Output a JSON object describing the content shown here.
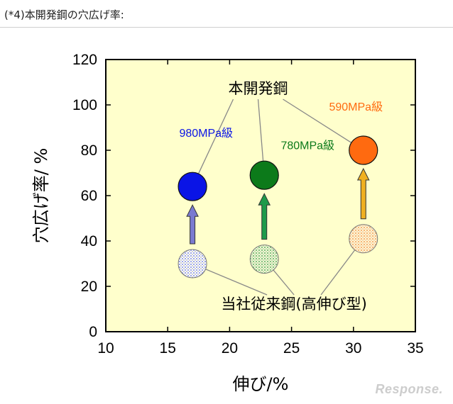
{
  "note": "(*4)本開発鋼の穴広げ率:",
  "watermark": "Response.",
  "chart_data": {
    "type": "scatter",
    "title": "",
    "xlabel": "伸び/%",
    "ylabel": "穴広げ率/ %",
    "xlim": [
      10,
      35
    ],
    "ylim": [
      0,
      120
    ],
    "xticks": [
      10,
      15,
      20,
      25,
      30,
      35
    ],
    "yticks": [
      0,
      20,
      40,
      60,
      80,
      100,
      120
    ],
    "plot_background": "#ffffcc",
    "grid": false,
    "group_labels": {
      "developed": "本開発鋼",
      "conventional": "当社従来鋼(高伸び型)"
    },
    "series": [
      {
        "name": "980MPa級",
        "color": "#0a14e6",
        "arrow_color": "#7a7ad0",
        "conventional": {
          "x": 17,
          "y": 30
        },
        "developed": {
          "x": 17,
          "y": 64
        }
      },
      {
        "name": "780MPa級",
        "color": "#0c7a1a",
        "arrow_color": "#1e9a4a",
        "conventional": {
          "x": 22.8,
          "y": 32
        },
        "developed": {
          "x": 22.8,
          "y": 69
        }
      },
      {
        "name": "590MPa級",
        "color": "#ff6a10",
        "arrow_color": "#f0b020",
        "conventional": {
          "x": 30.8,
          "y": 41
        },
        "developed": {
          "x": 30.8,
          "y": 80
        }
      }
    ]
  }
}
